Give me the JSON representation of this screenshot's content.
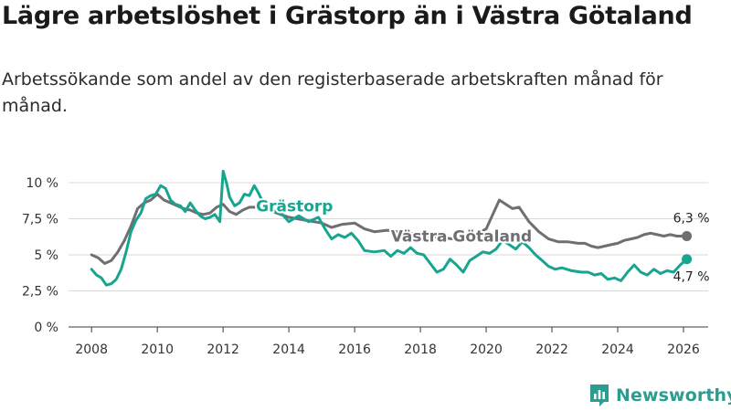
{
  "title": "Lägre arbetslöshet i Grästorp än i Västra Götaland",
  "subtitle": "Arbetssökande som andel av den registerbaserade arbetskraften månad för månad.",
  "brand": {
    "name": "Newsworthy",
    "icon": "newsworthy-logo-icon",
    "color": "#2a9d8f"
  },
  "chart_data": {
    "type": "line",
    "title": "Lägre arbetslöshet i Grästorp än i Västra Götaland",
    "xlabel": "",
    "ylabel": "",
    "xlim": [
      2007.3,
      2026.75
    ],
    "ylim": [
      0,
      10
    ],
    "y_ticks": [
      0,
      2.5,
      5,
      7.5,
      10
    ],
    "y_tick_labels": [
      "0 %",
      "2,5 %",
      "5 %",
      "7,5 %",
      "10 %"
    ],
    "x_ticks": [
      2008,
      2010,
      2012,
      2014,
      2016,
      2018,
      2020,
      2022,
      2024,
      2026
    ],
    "x_tick_labels": [
      "2008",
      "2010",
      "2012",
      "2014",
      "2016",
      "2018",
      "2020",
      "2022",
      "2024",
      "2026"
    ],
    "grid": true,
    "legend": "inline labels",
    "series": [
      {
        "name": "Västra Götaland",
        "color": "#6f6f73",
        "end_label": "6,3 %",
        "x": [
          2008.0,
          2008.2,
          2008.4,
          2008.6,
          2008.8,
          2009.0,
          2009.2,
          2009.4,
          2009.6,
          2009.8,
          2010.0,
          2010.2,
          2010.4,
          2010.6,
          2010.8,
          2011.0,
          2011.2,
          2011.4,
          2011.6,
          2011.8,
          2012.0,
          2012.2,
          2012.4,
          2012.6,
          2012.8,
          2013.0,
          2013.5,
          2014.0,
          2014.5,
          2015.0,
          2015.3,
          2015.6,
          2016.0,
          2016.3,
          2016.6,
          2017.0,
          2017.3,
          2017.6,
          2018.0,
          2018.3,
          2018.6,
          2019.0,
          2019.3,
          2019.6,
          2020.0,
          2020.2,
          2020.4,
          2020.6,
          2020.8,
          2021.0,
          2021.3,
          2021.6,
          2021.9,
          2022.2,
          2022.5,
          2022.8,
          2023.0,
          2023.2,
          2023.4,
          2023.6,
          2023.8,
          2024.0,
          2024.2,
          2024.4,
          2024.6,
          2024.8,
          2025.0,
          2025.2,
          2025.4,
          2025.6,
          2025.8,
          2026.1
        ],
        "values": [
          5.0,
          4.8,
          4.4,
          4.6,
          5.2,
          6.0,
          7.0,
          8.2,
          8.6,
          8.8,
          9.2,
          8.8,
          8.6,
          8.4,
          8.2,
          8.1,
          7.9,
          7.8,
          7.9,
          8.3,
          8.5,
          8.0,
          7.8,
          8.1,
          8.3,
          8.3,
          8.0,
          7.6,
          7.4,
          7.2,
          6.9,
          7.1,
          7.2,
          6.8,
          6.6,
          6.7,
          6.6,
          6.5,
          6.4,
          6.3,
          6.2,
          6.1,
          6.0,
          6.3,
          6.8,
          7.8,
          8.8,
          8.5,
          8.2,
          8.3,
          7.3,
          6.6,
          6.1,
          5.9,
          5.9,
          5.8,
          5.8,
          5.6,
          5.5,
          5.6,
          5.7,
          5.8,
          6.0,
          6.1,
          6.2,
          6.4,
          6.5,
          6.4,
          6.3,
          6.4,
          6.3,
          6.3
        ]
      },
      {
        "name": "Grästorp",
        "color": "#17a58f",
        "end_label": "4,7 %",
        "x": [
          2008.0,
          2008.15,
          2008.3,
          2008.45,
          2008.6,
          2008.75,
          2008.9,
          2009.05,
          2009.2,
          2009.35,
          2009.5,
          2009.65,
          2009.8,
          2009.95,
          2010.1,
          2010.25,
          2010.4,
          2010.55,
          2010.7,
          2010.85,
          2011.0,
          2011.15,
          2011.3,
          2011.45,
          2011.6,
          2011.75,
          2011.9,
          2012.0,
          2012.1,
          2012.2,
          2012.35,
          2012.5,
          2012.65,
          2012.8,
          2012.95,
          2013.05,
          2013.2,
          2013.4,
          2013.6,
          2013.8,
          2014.0,
          2014.3,
          2014.6,
          2014.9,
          2015.1,
          2015.3,
          2015.5,
          2015.7,
          2015.9,
          2016.1,
          2016.3,
          2016.6,
          2016.9,
          2017.1,
          2017.3,
          2017.5,
          2017.7,
          2017.9,
          2018.1,
          2018.3,
          2018.5,
          2018.7,
          2018.9,
          2019.1,
          2019.3,
          2019.5,
          2019.7,
          2019.9,
          2020.1,
          2020.3,
          2020.5,
          2020.7,
          2020.9,
          2021.1,
          2021.3,
          2021.5,
          2021.7,
          2021.9,
          2022.1,
          2022.3,
          2022.6,
          2022.9,
          2023.1,
          2023.3,
          2023.5,
          2023.7,
          2023.9,
          2024.1,
          2024.3,
          2024.5,
          2024.7,
          2024.9,
          2025.1,
          2025.3,
          2025.5,
          2025.7,
          2025.9,
          2026.1
        ],
        "values": [
          4.0,
          3.6,
          3.4,
          2.9,
          3.0,
          3.3,
          4.0,
          5.2,
          6.6,
          7.4,
          7.9,
          8.9,
          9.1,
          9.2,
          9.8,
          9.6,
          8.8,
          8.5,
          8.4,
          8.0,
          8.6,
          8.1,
          7.7,
          7.5,
          7.6,
          7.8,
          7.3,
          10.8,
          10.0,
          9.0,
          8.4,
          8.6,
          9.2,
          9.1,
          9.8,
          9.4,
          8.7,
          8.2,
          8.0,
          7.8,
          7.3,
          7.7,
          7.3,
          7.6,
          6.8,
          6.1,
          6.4,
          6.2,
          6.5,
          6.0,
          5.3,
          5.2,
          5.3,
          4.9,
          5.3,
          5.1,
          5.5,
          5.1,
          5.0,
          4.4,
          3.8,
          4.0,
          4.7,
          4.3,
          3.8,
          4.6,
          4.9,
          5.2,
          5.1,
          5.4,
          6.0,
          5.7,
          5.4,
          5.9,
          5.5,
          5.0,
          4.6,
          4.2,
          4.0,
          4.1,
          3.9,
          3.8,
          3.8,
          3.6,
          3.7,
          3.3,
          3.4,
          3.2,
          3.8,
          4.3,
          3.8,
          3.6,
          4.0,
          3.7,
          3.9,
          3.8,
          4.3,
          4.7
        ]
      }
    ]
  }
}
